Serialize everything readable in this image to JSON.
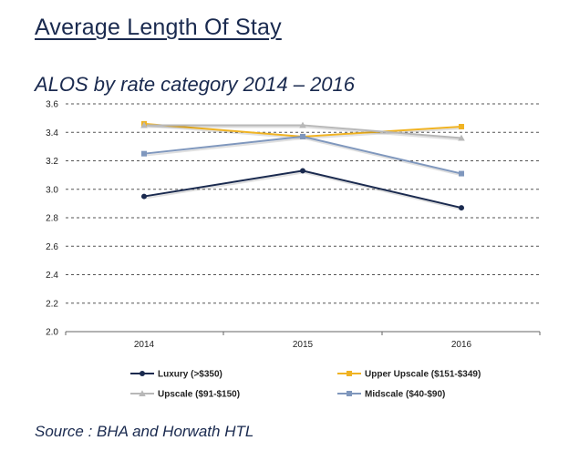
{
  "page": {
    "title": "Average Length Of Stay",
    "source": "Source : BHA and Horwath HTL"
  },
  "chart_data": {
    "type": "line",
    "title": "ALOS by rate category 2014 – 2016",
    "xlabel": "",
    "ylabel": "",
    "categories": [
      "2014",
      "2015",
      "2016"
    ],
    "ylim": [
      2.0,
      3.6
    ],
    "yticks": [
      "2.0",
      "2.2",
      "2.4",
      "2.6",
      "2.8",
      "3.0",
      "3.2",
      "3.4",
      "3.6"
    ],
    "grid": true,
    "legend_position": "bottom",
    "series": [
      {
        "name": "Luxury (>$350)",
        "values": [
          2.95,
          3.13,
          2.87
        ],
        "color": "#1a2a4f",
        "marker": "circle"
      },
      {
        "name": "Upper Upscale ($151-$349)",
        "values": [
          3.46,
          3.37,
          3.44
        ],
        "color": "#f0b323",
        "marker": "square"
      },
      {
        "name": "Upscale ($91-$150)",
        "values": [
          3.45,
          3.45,
          3.36
        ],
        "color": "#b8b8b8",
        "marker": "triangle"
      },
      {
        "name": "Midscale ($40-$90)",
        "values": [
          3.25,
          3.37,
          3.11
        ],
        "color": "#7f97bd",
        "marker": "square"
      }
    ]
  }
}
